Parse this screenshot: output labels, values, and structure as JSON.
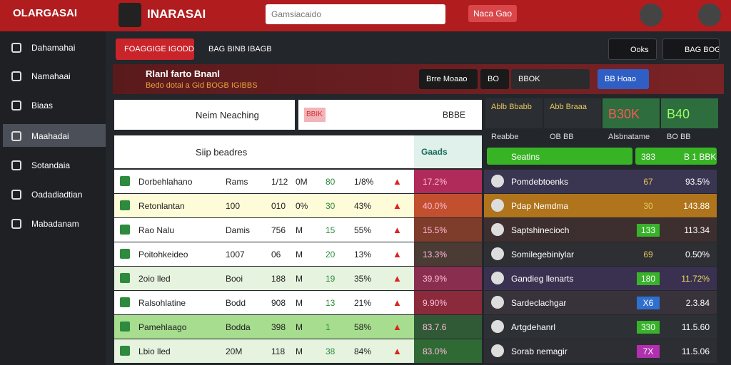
{
  "header": {
    "logo": "OLARGASAI",
    "brand": "INARASAI",
    "search_placeholder": "Gamsiacaido",
    "button": "Naca Gao"
  },
  "sidebar": {
    "items": [
      "Dahamahai",
      "Namahaai",
      "Biaas",
      "Maahadai",
      "Sotandaia",
      "Oadadiadtian",
      "Mabadanam"
    ]
  },
  "toolbar": {
    "tabs": [
      "FOAGGIGE IGODDN",
      "BAG BINB IBAGBS"
    ],
    "buttons": [
      "Ooks",
      "BAG BOG"
    ]
  },
  "banner": {
    "title": "Rlanl farto Bnanl",
    "subtitle": "Bedo dotai a Gid BOGB IGIBBS",
    "buttons": [
      "Brre Moaao",
      "BO",
      "BBOK",
      "BB Hoao"
    ]
  },
  "left_panel": {
    "header": "Neim Neaching",
    "search_tag": "BBIK",
    "search_code": "BBBE",
    "subheader": "Siip beadres",
    "subheader_tag": "Gaads",
    "rows": [
      [
        "Dorbehlahano",
        "Rams",
        "1/12",
        "0M",
        "80",
        "1/8%",
        "17.2%"
      ],
      [
        "Retonlantan",
        "100",
        "010",
        "0%",
        "30",
        "43%",
        "40.0%"
      ],
      [
        "Rao Nalu",
        "Damis",
        "756",
        "M",
        "15",
        "55%",
        "15.5%"
      ],
      [
        "Poitohkeideo",
        "1007",
        "06",
        "M",
        "20",
        "13%",
        "13.3%"
      ],
      [
        "2oio lled",
        "Booi",
        "188",
        "M",
        "19",
        "35%",
        "39.9%"
      ],
      [
        "Ralsohlatine",
        "Bodd",
        "908",
        "M",
        "13",
        "21%",
        "9.90%"
      ],
      [
        "Pamehlaago",
        "Bodda",
        "398",
        "M",
        "1",
        "58%",
        "83.7.6"
      ],
      [
        "Lbio lled",
        "20M",
        "118",
        "M",
        "38",
        "84%",
        "83.0%"
      ]
    ]
  },
  "right_panel": {
    "stats": [
      [
        "Ablb Bbabb",
        "",
        "Reabbe"
      ],
      [
        "Abb Braaa",
        "",
        "OB BB"
      ],
      [
        "",
        "B30K",
        "Alsbnatame"
      ],
      [
        "",
        "B40",
        "BO BB"
      ]
    ],
    "bar": [
      "Seatins",
      "383",
      "B 1 BBK"
    ],
    "rows": [
      [
        "Pomdebtoenks",
        "67",
        "93.5%"
      ],
      [
        "Pdap Nemdma",
        "30",
        "143.88"
      ],
      [
        "Saptshinecioch",
        "133",
        "113.34"
      ],
      [
        "Somilegebiniylar",
        "69",
        "0.50%"
      ],
      [
        "Gandieg llenarts",
        "180",
        "11.72%"
      ],
      [
        "Sardeclachgar",
        "X6",
        "2.3.84"
      ],
      [
        "Artgdehanrl",
        "330",
        "11.5.60"
      ],
      [
        "Sorab nemagir",
        "7X",
        "11.5.06"
      ]
    ]
  }
}
